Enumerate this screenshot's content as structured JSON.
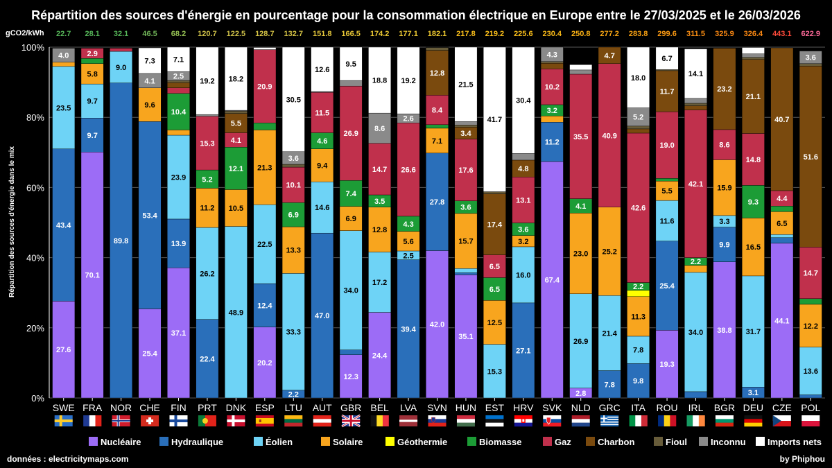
{
  "chart_data": {
    "type": "bar",
    "stacked": true,
    "title": "Répartition des sources d'énergie en pourcentage pour la consommation électrique en Europe entre le 27/03/2025 et le 26/03/2026",
    "ylabel": "Répartition des sources d'énergie dans le mix",
    "ylim": [
      0,
      100
    ],
    "yticks": [
      "0%",
      "20%",
      "40%",
      "60%",
      "80%",
      "100%"
    ],
    "co2_header": "gCO2/kWh",
    "categories": [
      "SWE",
      "FRA",
      "NOR",
      "CHE",
      "FIN",
      "PRT",
      "DNK",
      "ESP",
      "LTU",
      "AUT",
      "GBR",
      "BEL",
      "LVA",
      "SVN",
      "HUN",
      "EST",
      "HRV",
      "SVK",
      "NLD",
      "GRC",
      "ITA",
      "ROU",
      "IRL",
      "BGR",
      "DEU",
      "CZE",
      "POL"
    ],
    "co2_intensity": [
      22.7,
      28.1,
      32.1,
      46.5,
      68.2,
      120.7,
      122.5,
      128.7,
      132.7,
      151.8,
      166.5,
      174.2,
      177.1,
      182.1,
      217.8,
      219.2,
      225.6,
      230.4,
      250.8,
      277.2,
      283.8,
      299.6,
      311.5,
      325.9,
      326.4,
      443.1,
      622.9
    ],
    "co2_colors": [
      "#57b85a",
      "#57b85a",
      "#57b85a",
      "#73b85a",
      "#97c354",
      "#d2c44a",
      "#d2c44a",
      "#d8c646",
      "#d8c646",
      "#e6c83c",
      "#ecca37",
      "#f0cc33",
      "#f0cc33",
      "#f2cc30",
      "#ffc21a",
      "#ffc21a",
      "#ffc21a",
      "#ffbe18",
      "#ffb414",
      "#ffaa12",
      "#ffa512",
      "#ff9c12",
      "#ff9012",
      "#ff8a12",
      "#ff8a12",
      "#ff4a3a",
      "#ff6b9a"
    ],
    "series": [
      {
        "name": "Nucléaire",
        "color": "#9c6cf6",
        "values": [
          27.6,
          70.1,
          0,
          25.4,
          37.1,
          0,
          0,
          20.2,
          0,
          0,
          12.3,
          24.4,
          0,
          42.0,
          35.1,
          0,
          0,
          67.4,
          2.8,
          0,
          0,
          19.3,
          0,
          38.8,
          0,
          44.1,
          0
        ]
      },
      {
        "name": "Hydraulique",
        "color": "#2a6fba",
        "values": [
          43.4,
          9.7,
          89.8,
          53.4,
          13.9,
          22.4,
          0,
          12.4,
          2.2,
          47.0,
          1.4,
          0,
          39.4,
          27.8,
          0.6,
          0,
          27.1,
          11.2,
          0,
          7.8,
          9.8,
          25.4,
          1.8,
          9.9,
          3.1,
          1.6,
          0.9
        ]
      },
      {
        "name": "Éolien",
        "color": "#6ed3f6",
        "values": [
          23.5,
          9.7,
          9.0,
          0,
          23.9,
          26.2,
          48.9,
          22.5,
          33.3,
          14.6,
          34.0,
          17.2,
          2.5,
          0,
          1.2,
          15.3,
          16.0,
          0,
          26.9,
          21.4,
          7.8,
          11.6,
          34.0,
          3.3,
          31.7,
          0.9,
          13.6
        ]
      },
      {
        "name": "Solaire",
        "color": "#f8a51e",
        "values": [
          1.2,
          5.8,
          0,
          9.6,
          1.5,
          11.2,
          10.5,
          21.3,
          13.3,
          9.4,
          6.9,
          12.8,
          5.6,
          7.1,
          15.7,
          12.5,
          3.2,
          1.8,
          23.0,
          25.2,
          11.3,
          5.5,
          2.0,
          15.9,
          16.5,
          6.5,
          12.2
        ]
      },
      {
        "name": "Géothermie",
        "color": "#ffff00",
        "values": [
          0,
          0,
          0,
          0,
          0,
          0,
          0,
          0,
          0,
          0,
          0,
          0,
          0,
          0,
          0,
          0,
          0,
          0,
          0,
          0,
          1.8,
          0,
          0,
          0,
          0,
          0,
          0
        ]
      },
      {
        "name": "Biomasse",
        "color": "#1c9c36",
        "values": [
          0,
          1.5,
          0,
          0,
          10.4,
          5.2,
          12.1,
          2.0,
          6.9,
          4.6,
          7.4,
          3.5,
          4.3,
          1.0,
          3.6,
          6.5,
          3.6,
          3.2,
          4.1,
          0,
          2.2,
          0.8,
          2.2,
          0,
          9.3,
          1.6,
          1.6
        ]
      },
      {
        "name": "Gaz",
        "color": "#c0304c",
        "values": [
          0,
          2.9,
          0.9,
          0,
          1.6,
          15.3,
          4.1,
          20.9,
          10.1,
          11.5,
          26.9,
          14.7,
          26.6,
          8.4,
          17.6,
          6.5,
          13.1,
          10.2,
          35.5,
          40.9,
          42.6,
          19.0,
          42.1,
          8.6,
          14.8,
          4.4,
          14.7
        ]
      },
      {
        "name": "Charbon",
        "color": "#7a4a0e",
        "values": [
          0,
          0,
          0,
          0,
          1.5,
          0,
          5.5,
          0,
          0,
          0,
          0,
          0,
          0,
          12.8,
          3.4,
          17.4,
          4.8,
          1.6,
          0,
          4.7,
          1.2,
          11.7,
          1.2,
          23.2,
          21.1,
          40.7,
          51.6
        ]
      },
      {
        "name": "Fioul",
        "color": "#675c3a",
        "values": [
          0,
          0,
          0,
          0,
          0.6,
          0,
          0.7,
          0,
          0.8,
          0,
          0,
          0,
          0,
          0.8,
          0.6,
          0.6,
          0,
          0.5,
          0,
          0,
          0.8,
          0.3,
          0.7,
          0,
          0.6,
          0,
          0.7
        ]
      },
      {
        "name": "Inconnu",
        "color": "#8a8a8a",
        "values": [
          4.0,
          0,
          0,
          4.1,
          2.5,
          0.5,
          0.2,
          0,
          3.6,
          0.3,
          1.6,
          8.6,
          2.6,
          0.2,
          1.0,
          0,
          1.9,
          4.3,
          1.2,
          0,
          5.2,
          0,
          1.4,
          0,
          1.0,
          0,
          3.6
        ]
      },
      {
        "name": "Imports nets",
        "color": "#ffffff",
        "values": [
          0,
          0,
          0,
          7.3,
          7.1,
          19.2,
          18.2,
          0.6,
          30.5,
          12.6,
          9.5,
          18.8,
          19.2,
          0,
          21.5,
          41.7,
          30.4,
          0,
          1.5,
          0,
          18.0,
          6.7,
          14.1,
          0,
          1.8,
          0,
          0
        ]
      }
    ]
  },
  "flags": [
    "SWE",
    "FRA",
    "NOR",
    "CHE",
    "FIN",
    "PRT",
    "DNK",
    "ESP",
    "LTU",
    "AUT",
    "GBR",
    "BEL",
    "LVA",
    "SVN",
    "HUN",
    "EST",
    "HRV",
    "SVK",
    "NLD",
    "GRC",
    "ITA",
    "ROU",
    "IRL",
    "BGR",
    "DEU",
    "CZE",
    "POL"
  ],
  "footer": {
    "source": "données : electricitymaps.com",
    "author": "by Phiphou"
  }
}
